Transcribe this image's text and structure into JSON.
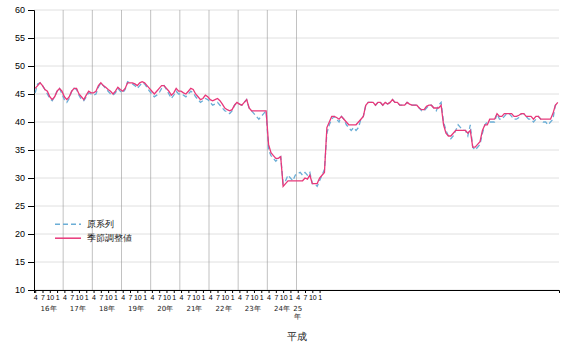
{
  "chart_data": {
    "type": "line",
    "xlabel": "平成",
    "categories": [
      "4",
      null,
      null,
      "7",
      null,
      null,
      "10",
      null,
      null,
      "1",
      null,
      null,
      "4",
      null,
      null,
      "7",
      null,
      null,
      "10",
      null,
      null,
      "1",
      null,
      null,
      "4",
      null,
      null,
      "7",
      null,
      null,
      "10",
      null,
      null,
      "1",
      null,
      null,
      "4",
      null,
      null,
      "7",
      null,
      null,
      "10",
      null,
      null,
      "1",
      null,
      null,
      "4",
      null,
      null,
      "7",
      null,
      null,
      "10",
      null,
      null,
      "1",
      null,
      null,
      "4",
      null,
      null,
      "7",
      null,
      null,
      "10",
      null,
      null,
      "1",
      null,
      null,
      "4",
      null,
      null,
      "7",
      null,
      null,
      "10",
      null,
      null,
      "1",
      null,
      null,
      "4",
      null,
      null,
      "7",
      null,
      null,
      "10",
      null,
      null,
      "1",
      null,
      null,
      "4",
      null,
      null,
      "7",
      null,
      null,
      "10",
      null,
      null,
      "1",
      null,
      null,
      "4",
      null,
      null,
      "7",
      null,
      null,
      "10",
      null,
      null,
      "1",
      null,
      null,
      null,
      null,
      null,
      null,
      null,
      null,
      null,
      null,
      null,
      null,
      null,
      null,
      null,
      null,
      null,
      null,
      null,
      null,
      null,
      null,
      null,
      null,
      null,
      null,
      null,
      null,
      null,
      null,
      null,
      null,
      null,
      null,
      null,
      null,
      null,
      null,
      null,
      null,
      null,
      null,
      null,
      null,
      null,
      null,
      null,
      null,
      null,
      null,
      null,
      null,
      null,
      null,
      null,
      null,
      null,
      null,
      null,
      null,
      null,
      null,
      null,
      null,
      null,
      null,
      null,
      null,
      null,
      null,
      null,
      null,
      null,
      null,
      null,
      null,
      null,
      null,
      null,
      null,
      null,
      null,
      null,
      null,
      null,
      null,
      null,
      null,
      null,
      null,
      null,
      null,
      null,
      null,
      null,
      null,
      null,
      null
    ],
    "series": [
      {
        "name": "原系列",
        "color": "#6baed6",
        "line_style": "dashed",
        "values": [
          45.2,
          46.8,
          47.0,
          46.5,
          45.8,
          45.0,
          44.2,
          43.8,
          44.5,
          45.5,
          46.0,
          45.0,
          44.0,
          43.5,
          44.2,
          45.5,
          46.0,
          45.8,
          44.8,
          44.0,
          43.8,
          44.5,
          45.2,
          45.0,
          44.8,
          45.0,
          46.2,
          47.0,
          46.5,
          46.0,
          45.5,
          45.0,
          44.8,
          45.2,
          46.0,
          45.5,
          45.2,
          45.8,
          47.2,
          47.0,
          46.8,
          46.5,
          46.0,
          46.5,
          47.0,
          46.8,
          46.2,
          45.5,
          45.0,
          44.5,
          44.8,
          45.2,
          46.0,
          46.5,
          45.8,
          45.0,
          44.2,
          44.8,
          45.5,
          45.0,
          45.0,
          44.8,
          44.5,
          45.0,
          45.5,
          45.2,
          44.5,
          44.0,
          43.5,
          43.8,
          44.2,
          44.0,
          43.5,
          43.0,
          43.2,
          43.5,
          43.0,
          42.5,
          42.0,
          41.8,
          41.5,
          42.0,
          43.0,
          43.5,
          43.2,
          43.0,
          43.5,
          44.0,
          42.5,
          42.0,
          41.5,
          41.0,
          40.5,
          41.0,
          41.5,
          42.0,
          35.0,
          34.0,
          33.5,
          33.0,
          33.5,
          33.8,
          29.0,
          29.5,
          30.5,
          30.0,
          29.5,
          30.5,
          30.8,
          31.0,
          30.5,
          31.0,
          30.5,
          31.0,
          29.0,
          29.0,
          28.5,
          29.5,
          30.5,
          31.5,
          38.0,
          39.5,
          40.5,
          41.0,
          40.5,
          40.0,
          41.0,
          40.5,
          39.5,
          39.0,
          38.5,
          39.0,
          38.5,
          39.0,
          40.5,
          41.0,
          43.0,
          43.5,
          43.5,
          43.5,
          43.0,
          43.5,
          43.5,
          43.0,
          43.5,
          43.2,
          43.5,
          44.0,
          43.5,
          43.5,
          43.0,
          43.0,
          43.0,
          43.5,
          43.2,
          43.0,
          43.0,
          43.0,
          42.5,
          42.0,
          42.0,
          42.5,
          43.0,
          43.0,
          42.5,
          42.0,
          43.0,
          43.5,
          40.0,
          38.5,
          37.5,
          37.0,
          37.5,
          38.5,
          39.5,
          39.0,
          38.5,
          38.5,
          37.5,
          39.5,
          35.5,
          35.0,
          35.5,
          36.0,
          38.0,
          39.5,
          40.0,
          40.0,
          40.0,
          40.0,
          41.5,
          40.5,
          40.5,
          41.0,
          41.5,
          41.5,
          41.0,
          40.5,
          40.5,
          40.8,
          41.5,
          41.5,
          41.0,
          40.5,
          40.5,
          40.0,
          40.5,
          41.0,
          40.5,
          40.0,
          40.0,
          39.5,
          40.0,
          40.5,
          43.0,
          43.5
        ]
      },
      {
        "name": "季節調整値",
        "color": "#e8387a",
        "line_style": "solid",
        "values": [
          46.0,
          46.5,
          47.0,
          46.5,
          45.8,
          45.5,
          44.5,
          44.0,
          44.5,
          45.5,
          46.0,
          45.5,
          44.5,
          44.0,
          44.5,
          45.5,
          46.0,
          46.0,
          45.0,
          44.5,
          44.0,
          44.8,
          45.5,
          45.2,
          45.2,
          45.5,
          46.5,
          47.0,
          46.5,
          46.2,
          45.8,
          45.5,
          45.0,
          45.5,
          46.2,
          45.8,
          45.5,
          46.0,
          47.0,
          47.0,
          47.0,
          46.8,
          46.5,
          47.0,
          47.2,
          47.0,
          46.5,
          46.0,
          45.5,
          45.0,
          45.5,
          46.0,
          46.5,
          46.5,
          46.0,
          45.5,
          44.8,
          45.2,
          46.0,
          45.5,
          45.5,
          45.2,
          45.0,
          45.5,
          46.0,
          45.8,
          45.0,
          44.5,
          44.0,
          44.2,
          44.8,
          44.5,
          44.0,
          43.8,
          44.0,
          44.2,
          43.8,
          43.2,
          42.5,
          42.2,
          42.0,
          42.2,
          43.0,
          43.5,
          43.2,
          43.0,
          43.5,
          44.0,
          42.5,
          42.0,
          42.0,
          42.0,
          42.0,
          42.0,
          42.0,
          42.0,
          36.0,
          34.5,
          34.0,
          33.5,
          33.5,
          33.8,
          28.5,
          29.0,
          29.5,
          29.5,
          29.5,
          29.5,
          29.5,
          29.5,
          29.5,
          30.0,
          29.8,
          30.5,
          29.0,
          29.0,
          29.0,
          30.0,
          30.5,
          31.0,
          39.0,
          40.0,
          41.0,
          41.0,
          40.8,
          40.5,
          41.0,
          40.5,
          40.0,
          39.5,
          39.5,
          39.5,
          39.5,
          40.0,
          40.5,
          41.0,
          43.0,
          43.5,
          43.5,
          43.5,
          43.0,
          43.5,
          43.5,
          43.0,
          43.5,
          43.2,
          43.5,
          44.0,
          43.5,
          43.5,
          43.0,
          43.0,
          43.0,
          43.5,
          43.2,
          43.0,
          43.0,
          43.0,
          42.5,
          42.2,
          42.2,
          42.8,
          43.0,
          43.0,
          42.5,
          42.5,
          42.5,
          43.0,
          39.5,
          38.0,
          37.5,
          37.5,
          38.0,
          38.5,
          38.5,
          38.5,
          38.5,
          38.5,
          38.0,
          38.5,
          35.5,
          35.5,
          36.0,
          36.5,
          38.5,
          39.5,
          39.5,
          40.5,
          40.5,
          40.5,
          41.5,
          41.0,
          41.0,
          41.5,
          41.5,
          41.5,
          41.5,
          41.0,
          41.0,
          41.2,
          41.5,
          41.5,
          41.0,
          41.0,
          41.0,
          40.5,
          41.0,
          41.0,
          40.5,
          40.5,
          40.5,
          40.5,
          40.5,
          41.5,
          43.0,
          43.5
        ]
      }
    ],
    "ylim": [
      10,
      60
    ],
    "yticks": [
      10,
      15,
      20,
      25,
      30,
      35,
      40,
      45,
      50,
      55,
      60
    ],
    "grid": true,
    "legend": "lower left",
    "annotations": [
      {
        "text": "16年",
        "x": 5.5
      },
      {
        "text": "17年",
        "x": 17.5
      },
      {
        "text": "18年",
        "x": 29.5
      },
      {
        "text": "19年",
        "x": 41.5
      },
      {
        "text": "20年",
        "x": 53.5
      },
      {
        "text": "21年",
        "x": 65.5
      },
      {
        "text": "22年",
        "x": 77.5
      },
      {
        "text": "23年",
        "x": 89.5
      },
      {
        "text": "24年",
        "x": 101.5
      },
      {
        "text": "25\n年",
        "x": 108
      }
    ],
    "vlines": [
      11.5,
      23.5,
      35.5,
      47.5,
      59.5,
      71.5,
      83.5,
      95.5,
      107.5
    ]
  }
}
